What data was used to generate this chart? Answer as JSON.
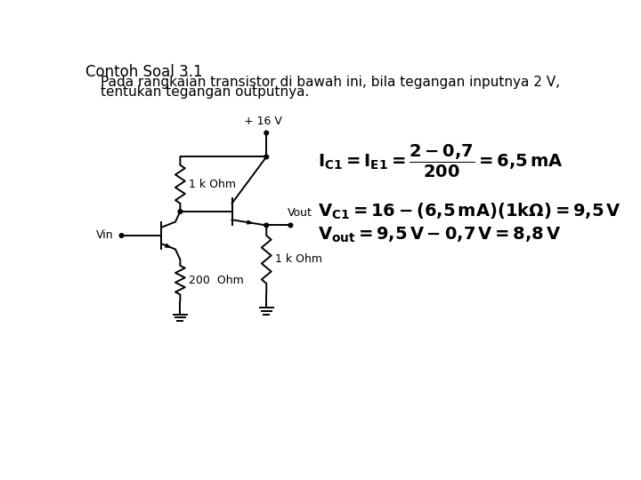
{
  "title": "Contoh Soal 3.1",
  "subtitle_line1": "Pada rangkaian transistor di bawah ini, bila tegangan inputnya 2 V,",
  "subtitle_line2": "tentukan tegangan outputnya.",
  "vcc_label": "+ 16 V",
  "r1_label": "1 k Ohm",
  "r2_label": "200  Ohm",
  "r3_label": "1 k Ohm",
  "vin_label": "Vin",
  "vout_label": "Vout",
  "bg_color": "#ffffff",
  "line_color": "#000000",
  "fs_title": 12,
  "fs_body": 11,
  "fs_label": 9,
  "fs_eq": 14
}
